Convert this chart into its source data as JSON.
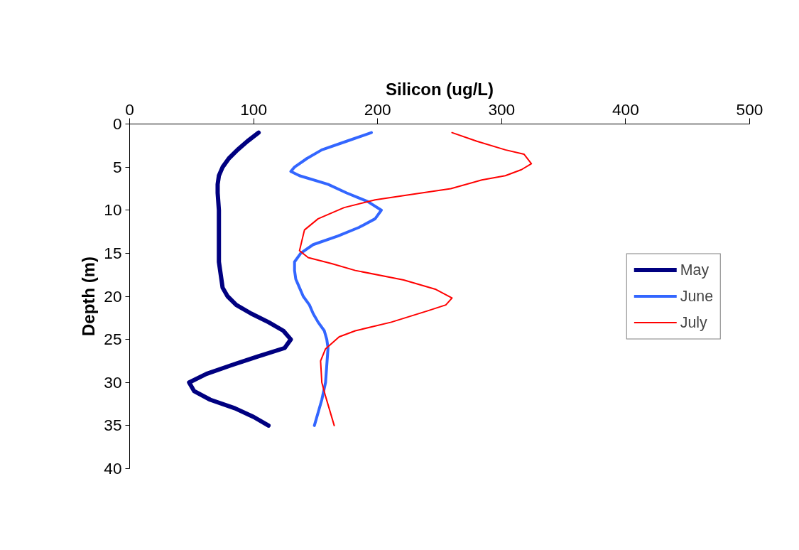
{
  "chart_data": {
    "type": "line",
    "xlabel": "Silicon (ug/L)",
    "ylabel": "Depth (m)",
    "xlim": [
      0,
      500
    ],
    "xticks": [
      0,
      100,
      200,
      300,
      400,
      500
    ],
    "ylim": [
      40,
      0
    ],
    "yticks": [
      0,
      5,
      10,
      15,
      20,
      25,
      30,
      35,
      40
    ],
    "grid": false,
    "legend": "right",
    "marker": "none",
    "line_style": "solid",
    "series": [
      {
        "name": "May",
        "color": "#000080",
        "x": [
          104,
          95,
          87,
          80,
          75,
          72,
          71,
          71,
          72,
          72,
          72,
          72,
          74,
          75,
          79,
          86,
          98,
          112,
          124,
          130,
          125,
          103,
          82,
          62,
          48,
          52,
          65,
          85,
          100,
          112
        ],
        "values": [
          1,
          2,
          3,
          4,
          5,
          6,
          7,
          8,
          10,
          12,
          14,
          16,
          18,
          19,
          20,
          21,
          22,
          23,
          24,
          25,
          26,
          27,
          28,
          29,
          30,
          31,
          32,
          33,
          34,
          35
        ]
      },
      {
        "name": "June",
        "color": "#3366ff",
        "x": [
          195,
          175,
          155,
          143,
          133,
          130,
          137,
          160,
          175,
          192,
          203,
          198,
          185,
          168,
          148,
          138,
          133,
          133,
          134,
          137,
          140,
          145,
          148,
          152,
          157,
          159,
          160,
          159,
          158,
          155,
          149
        ],
        "values": [
          1,
          2,
          3,
          4,
          5,
          5.5,
          6,
          7,
          8,
          9,
          10,
          11,
          12,
          13,
          14,
          15,
          16,
          17,
          18,
          19,
          20,
          21,
          22,
          23,
          24,
          25,
          26,
          28,
          30,
          32,
          35
        ]
      },
      {
        "name": "July",
        "color": "#ff0000",
        "x": [
          260,
          280,
          303,
          318,
          324,
          316,
          303,
          284,
          259,
          221,
          198,
          173,
          152,
          141,
          137,
          144,
          163,
          182,
          221,
          247,
          260,
          255,
          240,
          211,
          182,
          169,
          158,
          154,
          155,
          158,
          165
        ],
        "values": [
          1,
          2,
          3,
          3.5,
          4.6,
          5.3,
          6,
          6.5,
          7.5,
          8.3,
          8.8,
          9.7,
          11,
          12.3,
          14.7,
          15.5,
          16.2,
          17,
          18.1,
          19.2,
          20.2,
          21,
          21.7,
          23,
          24,
          24.7,
          26.1,
          27.5,
          30,
          31.6,
          35
        ]
      }
    ]
  }
}
